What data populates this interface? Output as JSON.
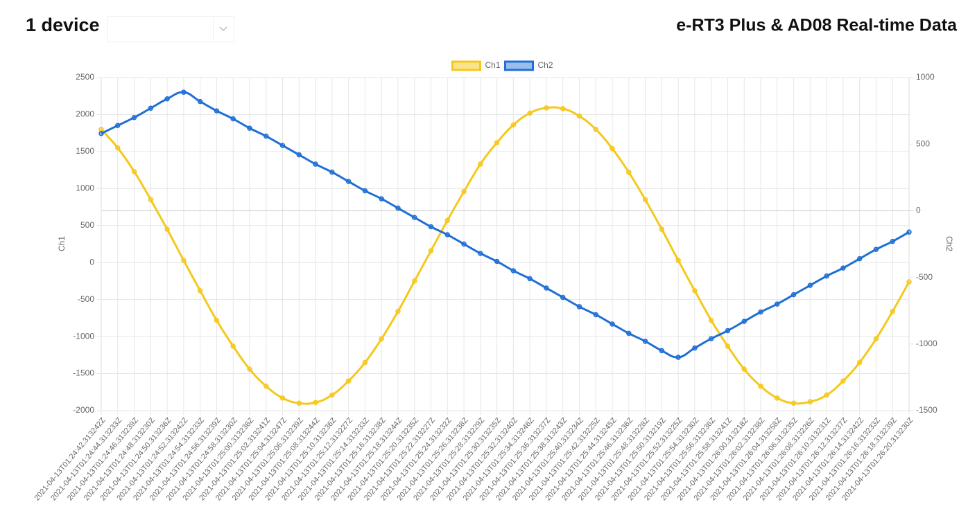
{
  "header": {
    "title": "1 device",
    "page_title": "e-RT3 Plus & AD08 Real-time Data"
  },
  "chart_data": {
    "type": "line",
    "categories": [
      "2021-04-13T01:24:42.313242Z",
      "2021-04-13T01:24:44.313233Z",
      "2021-04-13T01:24:46.313239Z",
      "2021-04-13T01:24:48.313230Z",
      "2021-04-13T01:24:50.313236Z",
      "2021-04-13T01:24:52.313242Z",
      "2021-04-13T01:24:54.313233Z",
      "2021-04-13T01:24:56.313239Z",
      "2021-04-13T01:24:58.313230Z",
      "2021-04-13T01:25:00.313236Z",
      "2021-04-13T01:25:02.313241Z",
      "2021-04-13T01:25:04.313247Z",
      "2021-04-13T01:25:06.313239Z",
      "2021-04-13T01:25:08.313244Z",
      "2021-04-13T01:25:10.313236Z",
      "2021-04-13T01:25:12.313227Z",
      "2021-04-13T01:25:14.313233Z",
      "2021-04-13T01:25:16.313238Z",
      "2021-04-13T01:25:18.313244Z",
      "2021-04-13T01:25:20.313235Z",
      "2021-04-13T01:25:22.313227Z",
      "2021-04-13T01:25:24.313232Z",
      "2021-04-13T01:25:26.313238Z",
      "2021-04-13T01:25:28.313229Z",
      "2021-04-13T01:25:30.313235Z",
      "2021-04-13T01:25:32.313240Z",
      "2021-04-13T01:25:34.313246Z",
      "2021-04-13T01:25:36.313237Z",
      "2021-04-13T01:25:38.313243Z",
      "2021-04-13T01:25:40.313234Z",
      "2021-04-13T01:25:42.313225Z",
      "2021-04-13T01:25:44.313245Z",
      "2021-04-13T01:25:46.313236Z",
      "2021-04-13T01:25:48.313228Z",
      "2021-04-13T01:25:50.313219Z",
      "2021-04-13T01:25:52.313225Z",
      "2021-04-13T01:25:54.313230Z",
      "2021-04-13T01:25:56.313236Z",
      "2021-04-13T01:25:58.313241Z",
      "2021-04-13T01:26:00.313218Z",
      "2021-04-13T01:26:02.313238Z",
      "2021-04-13T01:26:04.313258Z",
      "2021-04-13T01:26:06.313235Z",
      "2021-04-13T01:26:08.313226Z",
      "2021-04-13T01:26:10.313231Z",
      "2021-04-13T01:26:12.313237Z",
      "2021-04-13T01:26:14.313242Z",
      "2021-04-13T01:26:16.313233Z",
      "2021-04-13T01:26:18.313239Z",
      "2021-04-13T01:26:20.313230Z"
    ],
    "series": [
      {
        "name": "Ch1",
        "color": "#f5c81c",
        "values": [
          1800,
          1550,
          1230,
          850,
          450,
          30,
          -380,
          -780,
          -1130,
          -1440,
          -1670,
          -1830,
          -1900,
          -1890,
          -1790,
          -1600,
          -1350,
          -1030,
          -660,
          -250,
          160,
          570,
          960,
          1330,
          1620,
          1860,
          2020,
          2090,
          2080,
          1980,
          1800,
          1540,
          1220,
          850,
          450,
          30,
          -380,
          -780,
          -1130,
          -1440,
          -1670,
          -1830,
          -1900,
          -1880,
          -1790,
          -1600,
          -1350,
          -1030,
          -660,
          -260
        ]
      },
      {
        "name": "Ch2",
        "color": "#1f6fd5",
        "axis": "y2",
        "values": [
          580,
          640,
          700,
          770,
          840,
          890,
          820,
          750,
          690,
          620,
          560,
          490,
          420,
          350,
          290,
          220,
          150,
          90,
          20,
          -50,
          -120,
          -180,
          -250,
          -320,
          -380,
          -450,
          -510,
          -580,
          -650,
          -720,
          -780,
          -850,
          -920,
          -980,
          -1050,
          -1100,
          -1030,
          -960,
          -900,
          -830,
          -760,
          -700,
          -630,
          -560,
          -490,
          -430,
          -360,
          -290,
          -230,
          -160
        ]
      }
    ],
    "ylabel": "Ch1",
    "y2label": "Ch2",
    "ylim": [
      -2000,
      2500
    ],
    "yticks": [
      -2000,
      -1500,
      -1000,
      -500,
      0,
      500,
      1000,
      1500,
      2000,
      2500
    ],
    "y2lim": [
      -1500,
      1000
    ],
    "y2ticks": [
      -1500,
      -1000,
      -500,
      0,
      500,
      1000
    ],
    "grid": true,
    "legend": "top"
  }
}
